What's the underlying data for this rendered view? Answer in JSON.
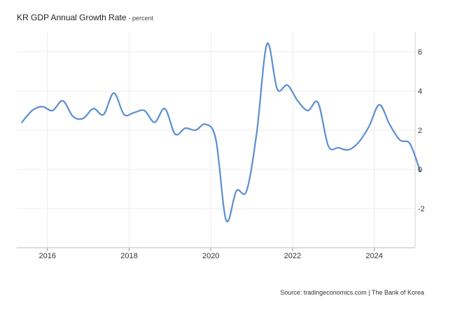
{
  "chart_data": {
    "type": "line",
    "title": "KR GDP Annual Growth Rate",
    "subtitle": "- percent",
    "xlabel": "",
    "ylabel": "",
    "x_ticks": [
      "2016",
      "2018",
      "2020",
      "2022",
      "2024"
    ],
    "y_ticks": [
      -2,
      0,
      2,
      4,
      6
    ],
    "y_tick_labels": [
      "-2",
      "0",
      "2",
      "4",
      "6"
    ],
    "ylim": [
      -4,
      7
    ],
    "xlim": [
      "2015-04",
      "2025-01"
    ],
    "grid": true,
    "series_color": "#5b8fd0",
    "series": [
      {
        "x": [
          "2015-Q2",
          "2015-Q3",
          "2015-Q4",
          "2016-Q1",
          "2016-Q2",
          "2016-Q3",
          "2016-Q4",
          "2017-Q1",
          "2017-Q2",
          "2017-Q3",
          "2017-Q4",
          "2018-Q1",
          "2018-Q2",
          "2018-Q3",
          "2018-Q4",
          "2019-Q1",
          "2019-Q2",
          "2019-Q3",
          "2019-Q4",
          "2020-Q1",
          "2020-Q2",
          "2020-Q3",
          "2020-Q4",
          "2021-Q1",
          "2021-Q2",
          "2021-Q3",
          "2021-Q4",
          "2022-Q1",
          "2022-Q2",
          "2022-Q3",
          "2022-Q4",
          "2023-Q1",
          "2023-Q2",
          "2023-Q3",
          "2023-Q4",
          "2024-Q1",
          "2024-Q2",
          "2024-Q3",
          "2024-Q4",
          "2025-Q1"
        ],
        "values": [
          2.4,
          3.0,
          3.2,
          3.0,
          3.5,
          2.7,
          2.6,
          3.1,
          2.8,
          3.9,
          2.8,
          2.9,
          3.0,
          2.4,
          3.1,
          1.8,
          2.1,
          2.0,
          2.3,
          1.5,
          -2.6,
          -1.1,
          -1.1,
          1.9,
          6.4,
          4.1,
          4.3,
          3.5,
          3.0,
          3.4,
          1.2,
          1.1,
          1.0,
          1.4,
          2.2,
          3.3,
          2.3,
          1.5,
          1.3,
          -0.1
        ]
      }
    ]
  },
  "source": "Source: tradingeconomics.com | The Bank of Korea"
}
